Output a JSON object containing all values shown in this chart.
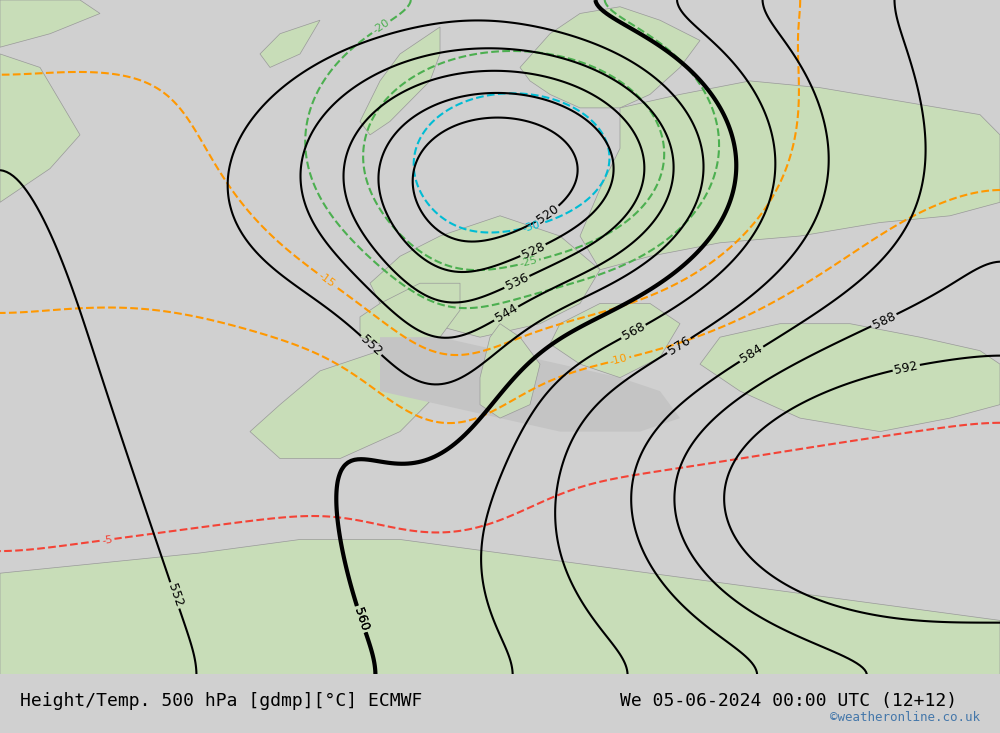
{
  "title_left": "Height/Temp. 500 hPa [gdmp][°C] ECMWF",
  "title_right": "We 05-06-2024 00:00 UTC (12+12)",
  "watermark": "©weatheronline.co.uk",
  "bg_color": "#e8e8e8",
  "land_color_light": "#c8e6c0",
  "land_color_dark": "#b0d4a8",
  "sea_color": "#d8d8d8",
  "title_fontsize": 13,
  "watermark_color": "#4477aa",
  "label_fontsize": 10
}
